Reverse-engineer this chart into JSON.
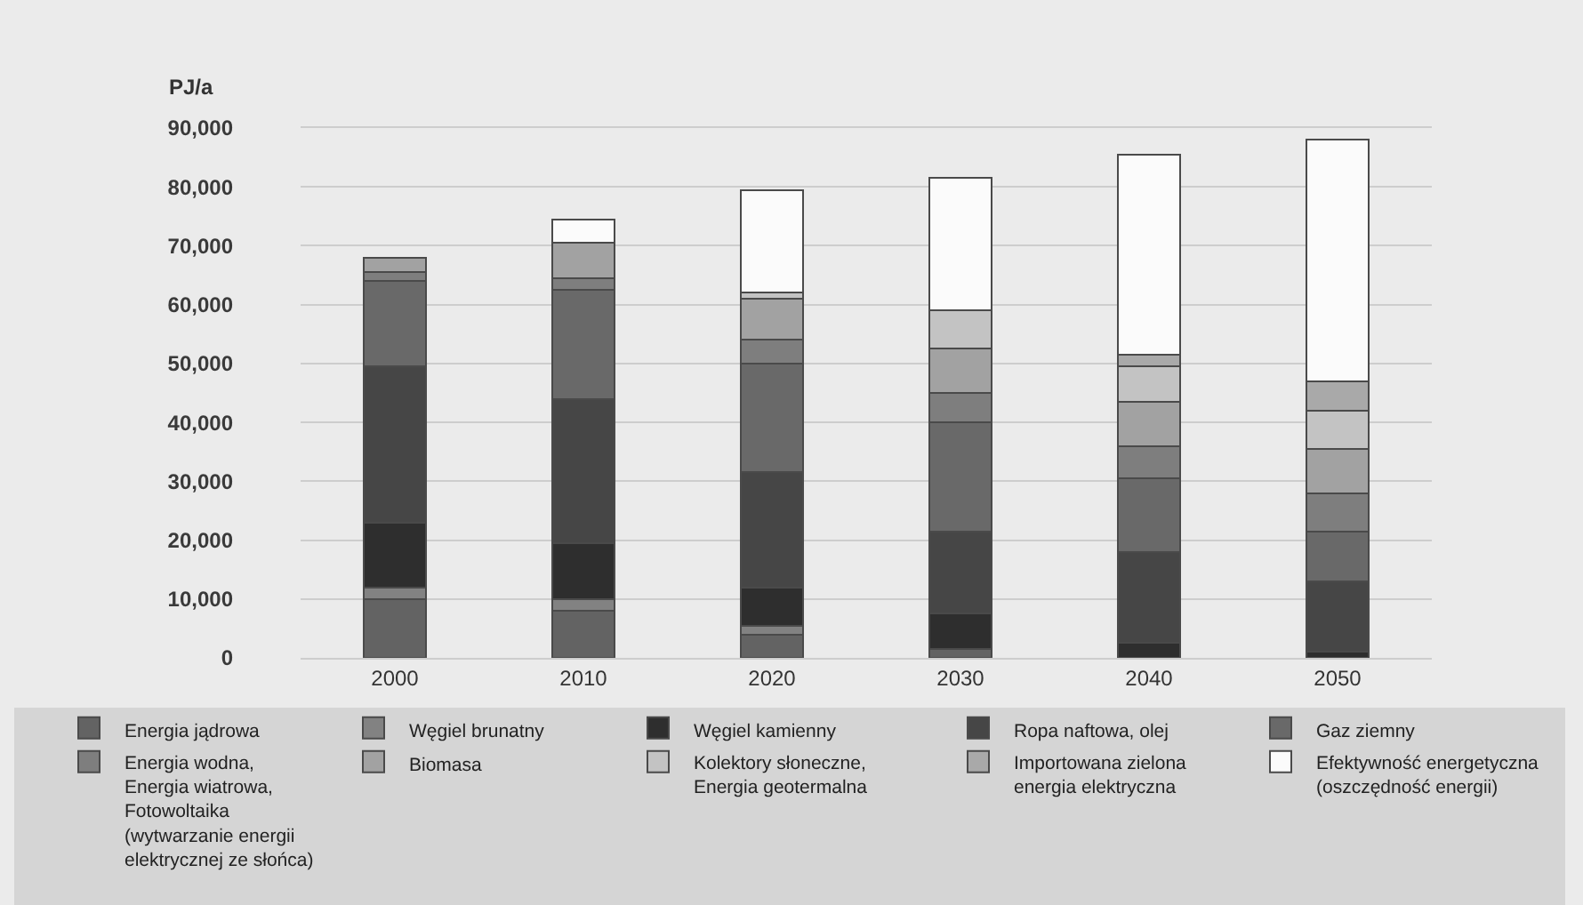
{
  "chart_data": {
    "type": "bar",
    "stacked": true,
    "ylabel": "PJ/a",
    "categories": [
      "2000",
      "2010",
      "2020",
      "2030",
      "2040",
      "2050"
    ],
    "ylim": [
      0,
      90000
    ],
    "yticks": [
      0,
      {
        "value": 10000,
        "label": "10,000"
      },
      {
        "value": 20000,
        "label": "20,000"
      },
      {
        "value": 30000,
        "label": "30,000"
      },
      {
        "value": 40000,
        "label": "40,000"
      },
      {
        "value": 50000,
        "label": "50,000"
      },
      {
        "value": 60000,
        "label": "60,000"
      },
      {
        "value": 70000,
        "label": "70,000"
      },
      {
        "value": 80000,
        "label": "80,000"
      },
      {
        "value": 90000,
        "label": "90,000"
      }
    ],
    "grid": "y",
    "legend": "bottom",
    "series": [
      {
        "name": "Energia jądrowa",
        "color": "#636363",
        "values": [
          10000,
          8000,
          4000,
          1500,
          null,
          null
        ]
      },
      {
        "name": "Węgiel brunatny",
        "color": "#828282",
        "values": [
          2000,
          2000,
          1500,
          null,
          null,
          null
        ]
      },
      {
        "name": "Węgiel kamienny",
        "color": "#2e2e2e",
        "values": [
          11000,
          9500,
          6500,
          6000,
          2500,
          1000
        ]
      },
      {
        "name": "Ropa naftowa, olej",
        "color": "#464646",
        "values": [
          26500,
          24500,
          19500,
          14000,
          15500,
          12000
        ]
      },
      {
        "name": "Gaz ziemny",
        "color": "#696969",
        "values": [
          14500,
          18500,
          18500,
          18500,
          12500,
          8500
        ]
      },
      {
        "name": "Energia wodna,\nEnergia wiatrowa,\nFotowoltaika\n(wytwarzanie energii elektrycznej ze słońca)",
        "color": "#7e7e7e",
        "values": [
          1500,
          2000,
          4000,
          5000,
          5500,
          6500
        ]
      },
      {
        "name": "Biomasa",
        "color": "#a2a2a2",
        "values": [
          2500,
          6000,
          7000,
          7500,
          7500,
          7500
        ]
      },
      {
        "name": "Kolektory słoneczne,\nEnergia geotermalna",
        "color": "#c3c3c3",
        "values": [
          null,
          null,
          1000,
          6500,
          6000,
          6500
        ]
      },
      {
        "name": "Importowana zielona\nenergia elektryczna",
        "color": "#a9a9a9",
        "values": [
          null,
          null,
          null,
          null,
          2000,
          5000
        ]
      },
      {
        "name": "Efektywność energetyczna\n(oszczędność energii)",
        "color": "#fbfbfb",
        "values": [
          null,
          4000,
          17500,
          22500,
          34000,
          41000
        ]
      }
    ]
  }
}
